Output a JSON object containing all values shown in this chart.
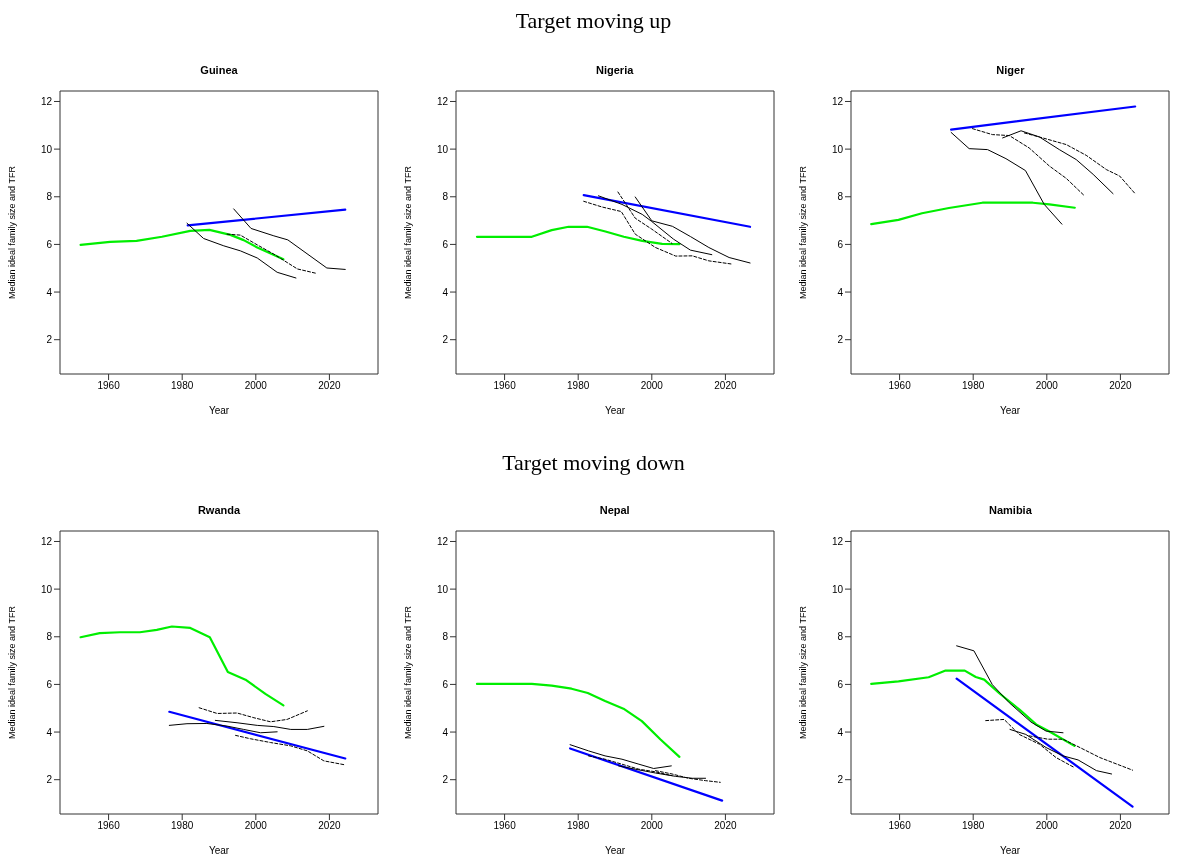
{
  "chart_data": [
    {
      "type": "line",
      "title": "Guinea",
      "xlabel": "Year",
      "ylabel": "Median ideal family size and TFR",
      "annotations": [
        "Target moving up"
      ],
      "xlim": [
        1946.8,
        2033.2
      ],
      "ylim": [
        0.56,
        12.44
      ],
      "xticks": [
        1960,
        1980,
        2000,
        2020
      ],
      "yticks": [
        2,
        4,
        6,
        8,
        10,
        12
      ],
      "marker": "none",
      "line_style": "solid",
      "series": [
        {
          "color": "#00ee00",
          "x": [
            1952.4,
            1960.4,
            1967.6,
            1974.5,
            1982.2,
            1987.4,
            1993.1,
            1996.7,
            2000.4,
            2007.5
          ],
          "values": [
            5.98,
            6.11,
            6.15,
            6.32,
            6.57,
            6.61,
            6.4,
            6.18,
            5.87,
            5.38
          ]
        },
        {
          "color": "#0000ff",
          "x": [
            1981.5,
            2024.3
          ],
          "values": [
            6.8,
            7.46
          ]
        },
        {
          "color": "#000000",
          "x": [
            1981.3,
            1985.8,
            1991.3,
            1995.8,
            2000.4,
            2005.8,
            2010.9
          ],
          "values": [
            6.89,
            6.25,
            5.94,
            5.73,
            5.43,
            4.83,
            4.59
          ]
        },
        {
          "color": "#000000",
          "x": [
            1994,
            1998.7,
            2004.9,
            2008.7,
            2019.3,
            2024.3
          ],
          "values": [
            7.49,
            6.67,
            6.36,
            6.19,
            5.01,
            4.95
          ]
        },
        {
          "color": "#000000",
          "line_style": "dashed",
          "x": [
            1992.2,
            1995.8,
            2000.4,
            2004.9,
            2011.3,
            2016.3
          ],
          "values": [
            6.43,
            6.39,
            5.98,
            5.59,
            4.97,
            4.79
          ]
        }
      ]
    },
    {
      "type": "line",
      "title": "Nigeria",
      "xlabel": "Year",
      "ylabel": "Median ideal family size and TFR",
      "xlim": [
        1946.8,
        2033.2
      ],
      "ylim": [
        0.56,
        12.44
      ],
      "xticks": [
        1960,
        1980,
        2000,
        2020
      ],
      "yticks": [
        2,
        4,
        6,
        8,
        10,
        12
      ],
      "marker": "none",
      "line_style": "solid",
      "series": [
        {
          "color": "#00ee00",
          "x": [
            1952.5,
            1967.4,
            1972.8,
            1977.4,
            1982.4,
            1987.4,
            1992.4,
            1997.4,
            2002.8,
            2007.5
          ],
          "values": [
            6.32,
            6.32,
            6.6,
            6.74,
            6.74,
            6.54,
            6.32,
            6.15,
            6.02,
            6.01
          ]
        },
        {
          "color": "#0000ff",
          "x": [
            1981.5,
            2026.7
          ],
          "values": [
            8.07,
            6.74
          ]
        },
        {
          "color": "#000000",
          "x": [
            1985.5,
            1991.9,
            1997.4,
            2000,
            2005.9,
            2010.5,
            2016.3
          ],
          "values": [
            8.04,
            7.68,
            7.26,
            6.96,
            6.22,
            5.76,
            5.57
          ]
        },
        {
          "color": "#000000",
          "x": [
            1995.5,
            2000,
            2005.6,
            2010.5,
            2015.5,
            2021,
            2026.7
          ],
          "values": [
            7.99,
            6.99,
            6.76,
            6.33,
            5.87,
            5.45,
            5.22
          ]
        },
        {
          "color": "#000000",
          "line_style": "dashed",
          "x": [
            1981.5,
            1986.5,
            1991.7,
            1995.5,
            2001,
            2006.5,
            2011,
            2015.5,
            2021.5
          ],
          "values": [
            7.81,
            7.57,
            7.38,
            6.43,
            5.87,
            5.51,
            5.52,
            5.31,
            5.18
          ]
        },
        {
          "color": "#000000",
          "line_style": "dashed",
          "x": [
            1990.8,
            1995.5,
            2000,
            2005.5
          ],
          "values": [
            8.2,
            7.1,
            6.64,
            6.04
          ]
        }
      ]
    },
    {
      "type": "line",
      "title": "Niger",
      "xlabel": "Year",
      "ylabel": "Median ideal family size and TFR",
      "xlim": [
        1946.8,
        2033.2
      ],
      "ylim": [
        0.56,
        12.44
      ],
      "xticks": [
        1960,
        1980,
        2000,
        2020
      ],
      "yticks": [
        2,
        4,
        6,
        8,
        10,
        12
      ],
      "marker": "none",
      "line_style": "solid",
      "series": [
        {
          "color": "#00ee00",
          "x": [
            1952.3,
            1959.7,
            1966.1,
            1973.4,
            1982.5,
            1996.2,
            2000.7,
            2007.6
          ],
          "values": [
            6.85,
            7.03,
            7.31,
            7.53,
            7.75,
            7.75,
            7.68,
            7.54
          ]
        },
        {
          "color": "#0000ff",
          "x": [
            1974,
            2024
          ],
          "values": [
            10.82,
            11.79
          ]
        },
        {
          "color": "#000000",
          "x": [
            1974,
            1978.9,
            1983.9,
            1988.9,
            1994.2,
            1999.3,
            2004.1
          ],
          "values": [
            10.7,
            10.02,
            9.98,
            9.6,
            9.1,
            7.68,
            6.85
          ]
        },
        {
          "color": "#000000",
          "x": [
            1988,
            1993,
            1998,
            2003.4,
            2008,
            2012.6,
            2018
          ],
          "values": [
            10.47,
            10.77,
            10.51,
            9.98,
            9.56,
            8.94,
            8.13
          ]
        },
        {
          "color": "#000000",
          "line_style": "dashed",
          "x": [
            1979.8,
            1985.2,
            1989.8,
            1995.2,
            2000.7,
            2005.3,
            2010.3
          ],
          "values": [
            10.86,
            10.61,
            10.57,
            10.05,
            9.29,
            8.77,
            8.03
          ]
        },
        {
          "color": "#000000",
          "line_style": "dashed",
          "x": [
            1993.9,
            1998.9,
            2005.3,
            2010.7,
            2016.2,
            2019.8,
            2024
          ],
          "values": [
            10.68,
            10.47,
            10.19,
            9.74,
            9.14,
            8.87,
            8.13
          ]
        }
      ]
    },
    {
      "type": "line",
      "title": "Rwanda",
      "xlabel": "Year",
      "ylabel": "Median ideal family size and TFR",
      "annotations": [
        "Target moving down"
      ],
      "xlim": [
        1946.8,
        2033.2
      ],
      "ylim": [
        0.56,
        12.44
      ],
      "xticks": [
        1960,
        1980,
        2000,
        2020
      ],
      "yticks": [
        2,
        4,
        6,
        8,
        10,
        12
      ],
      "marker": "none",
      "line_style": "solid",
      "series": [
        {
          "color": "#00ee00",
          "x": [
            1952.4,
            1957.6,
            1963.1,
            1968.5,
            1973.1,
            1977.2,
            1982.2,
            1987.5,
            1992.4,
            1997.2,
            2002.6,
            2007.5
          ],
          "values": [
            7.98,
            8.15,
            8.19,
            8.19,
            8.29,
            8.43,
            8.37,
            7.98,
            6.52,
            6.2,
            5.6,
            5.12
          ]
        },
        {
          "color": "#0000ff",
          "x": [
            1976.5,
            2024.3
          ],
          "values": [
            4.85,
            2.89
          ]
        },
        {
          "color": "#000000",
          "x": [
            1976.5,
            1981.3,
            1986.7,
            1992.2,
            1996.7,
            2001.3,
            2005.8
          ],
          "values": [
            4.28,
            4.35,
            4.36,
            4.25,
            4.11,
            3.97,
            4.01
          ]
        },
        {
          "color": "#000000",
          "x": [
            1989,
            1994.9,
            2000.4,
            2004.9,
            2009.5,
            2014,
            2018.5
          ],
          "values": [
            4.49,
            4.39,
            4.28,
            4.23,
            4.11,
            4.11,
            4.24
          ]
        },
        {
          "color": "#000000",
          "line_style": "dashed",
          "x": [
            1984.6,
            1989.5,
            1994.9,
            1999.5,
            2004,
            2008.5,
            2014
          ],
          "values": [
            5.02,
            4.78,
            4.8,
            4.6,
            4.43,
            4.53,
            4.89
          ]
        },
        {
          "color": "#000000",
          "line_style": "dashed",
          "x": [
            1994.5,
            1998.5,
            2004,
            2009.5,
            2014,
            2018.5,
            2024
          ],
          "values": [
            3.86,
            3.72,
            3.56,
            3.42,
            3.21,
            2.79,
            2.63
          ]
        }
      ]
    },
    {
      "type": "line",
      "title": "Nepal",
      "xlabel": "Year",
      "ylabel": "Median ideal family size and TFR",
      "xlim": [
        1946.8,
        2033.2
      ],
      "ylim": [
        0.56,
        12.44
      ],
      "xticks": [
        1960,
        1980,
        2000,
        2020
      ],
      "yticks": [
        2,
        4,
        6,
        8,
        10,
        12
      ],
      "marker": "none",
      "line_style": "solid",
      "series": [
        {
          "color": "#00ee00",
          "x": [
            1952.5,
            1967.4,
            1972.8,
            1978.2,
            1982.6,
            1987.3,
            1992.3,
            1997.3,
            2002.3,
            2007.5
          ],
          "values": [
            6.02,
            6.02,
            5.95,
            5.82,
            5.64,
            5.3,
            4.98,
            4.46,
            3.7,
            2.96
          ]
        },
        {
          "color": "#0000ff",
          "x": [
            1977.8,
            2019.1
          ],
          "values": [
            3.31,
            1.12
          ]
        },
        {
          "color": "#000000",
          "x": [
            1977.8,
            1982.8,
            1987.3,
            1991.9,
            1996.5,
            2000.5,
            2005.3
          ],
          "values": [
            3.47,
            3.21,
            3.0,
            2.86,
            2.65,
            2.47,
            2.58
          ]
        },
        {
          "color": "#000000",
          "x": [
            1991,
            1995.5,
            2001,
            2006.5,
            2011,
            2014.6
          ],
          "values": [
            2.58,
            2.44,
            2.28,
            2.14,
            2.06,
            2.06
          ]
        },
        {
          "color": "#000000",
          "line_style": "dashed",
          "x": [
            1982.8,
            1987.3,
            1991.9,
            1996.5,
            2001,
            2005.5
          ],
          "values": [
            3.0,
            2.86,
            2.65,
            2.44,
            2.33,
            2.17
          ]
        },
        {
          "color": "#000000",
          "line_style": "dashed",
          "x": [
            2001,
            2005.5,
            2010,
            2014.6,
            2018.6
          ],
          "values": [
            2.38,
            2.24,
            2.06,
            1.96,
            1.89
          ]
        }
      ]
    },
    {
      "type": "line",
      "title": "Namibia",
      "xlabel": "Year",
      "ylabel": "Median ideal family size and TFR",
      "xlim": [
        1946.8,
        2033.2
      ],
      "ylim": [
        0.56,
        12.44
      ],
      "xticks": [
        1960,
        1980,
        2000,
        2020
      ],
      "yticks": [
        2,
        4,
        6,
        8,
        10,
        12
      ],
      "marker": "none",
      "line_style": "solid",
      "series": [
        {
          "color": "#00ee00",
          "x": [
            1952.3,
            1959.7,
            1967.9,
            1972.5,
            1977.7,
            1980.7,
            1983,
            1987,
            1992.5,
            1997.1,
            2000.7,
            2007.5
          ],
          "values": [
            6.02,
            6.13,
            6.3,
            6.58,
            6.58,
            6.31,
            6.2,
            5.64,
            4.95,
            4.32,
            4.02,
            3.42
          ]
        },
        {
          "color": "#0000ff",
          "x": [
            1975.5,
            2023.3
          ],
          "values": [
            6.24,
            0.87
          ]
        },
        {
          "color": "#000000",
          "x": [
            1975.5,
            1980.2,
            1985.2,
            1989.8,
            1995.7,
            1999.8,
            2004.4
          ],
          "values": [
            7.62,
            7.41,
            5.99,
            5.23,
            4.42,
            4.04,
            3.97
          ]
        },
        {
          "color": "#000000",
          "x": [
            1990,
            1994.3,
            1999.8,
            2004.4,
            2008.5,
            2013.5,
            2017.6
          ],
          "values": [
            4.11,
            3.9,
            3.35,
            3.0,
            2.83,
            2.38,
            2.24
          ]
        },
        {
          "color": "#000000",
          "line_style": "dashed",
          "x": [
            1983.4,
            1988.4,
            1992.5,
            1998,
            2002.5,
            2007.5
          ],
          "values": [
            4.48,
            4.53,
            3.9,
            3.49,
            2.93,
            2.51
          ]
        },
        {
          "color": "#000000",
          "line_style": "dashed",
          "x": [
            1995.2,
            2000.3,
            2004.4,
            2009,
            2014.4,
            2023.3
          ],
          "values": [
            3.84,
            3.7,
            3.7,
            3.35,
            2.93,
            2.4
          ]
        }
      ]
    }
  ]
}
